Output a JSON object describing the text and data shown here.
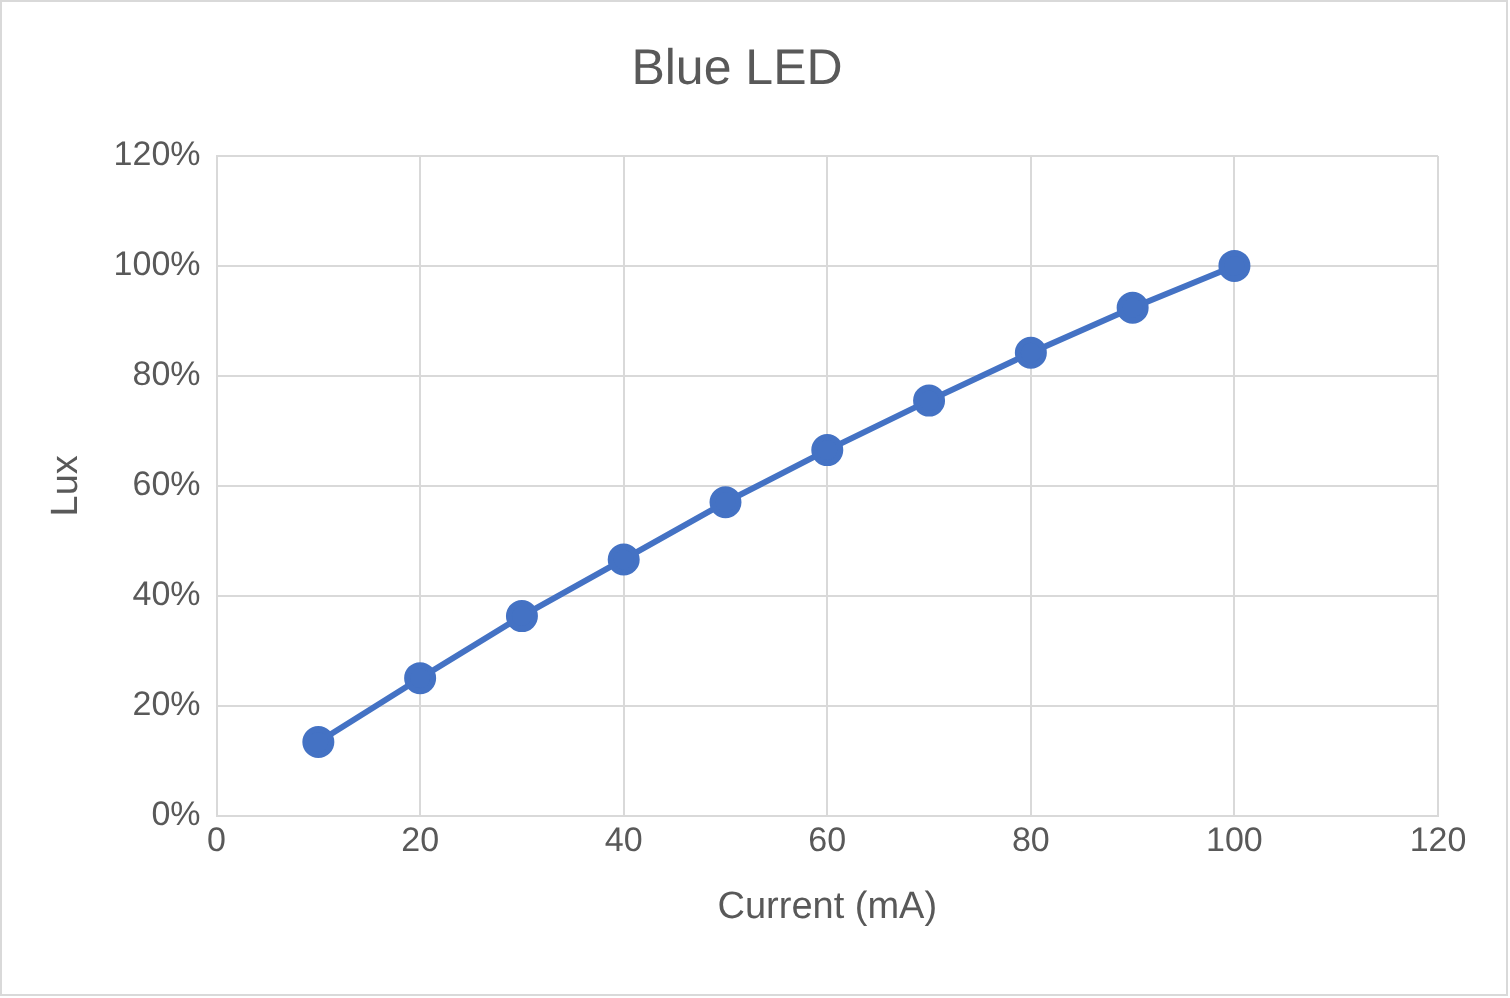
{
  "chart_data": {
    "type": "line",
    "title": "Blue LED",
    "xlabel": "Current (mA)",
    "ylabel": "Lux",
    "x": [
      10,
      20,
      30,
      40,
      50,
      60,
      70,
      80,
      90,
      100
    ],
    "series": [
      {
        "color": "#4472c4",
        "values": [
          13.4,
          25,
          36.3,
          46.6,
          57,
          66.5,
          75.5,
          84.2,
          92.4,
          100
        ]
      }
    ],
    "xlim": [
      0,
      120
    ],
    "xticks": [
      0,
      20,
      40,
      60,
      80,
      100,
      120
    ],
    "ylim": [
      0,
      120
    ],
    "yticks": [
      {
        "value": 0,
        "label": "0%"
      },
      {
        "value": 20,
        "label": "20%"
      },
      {
        "value": 40,
        "label": "40%"
      },
      {
        "value": 60,
        "label": "60%"
      },
      {
        "value": 80,
        "label": "80%"
      },
      {
        "value": 100,
        "label": "100%"
      },
      {
        "value": 120,
        "label": "120%"
      }
    ],
    "grid": true,
    "legend": false,
    "marker": "circle",
    "line_style": "solid"
  }
}
